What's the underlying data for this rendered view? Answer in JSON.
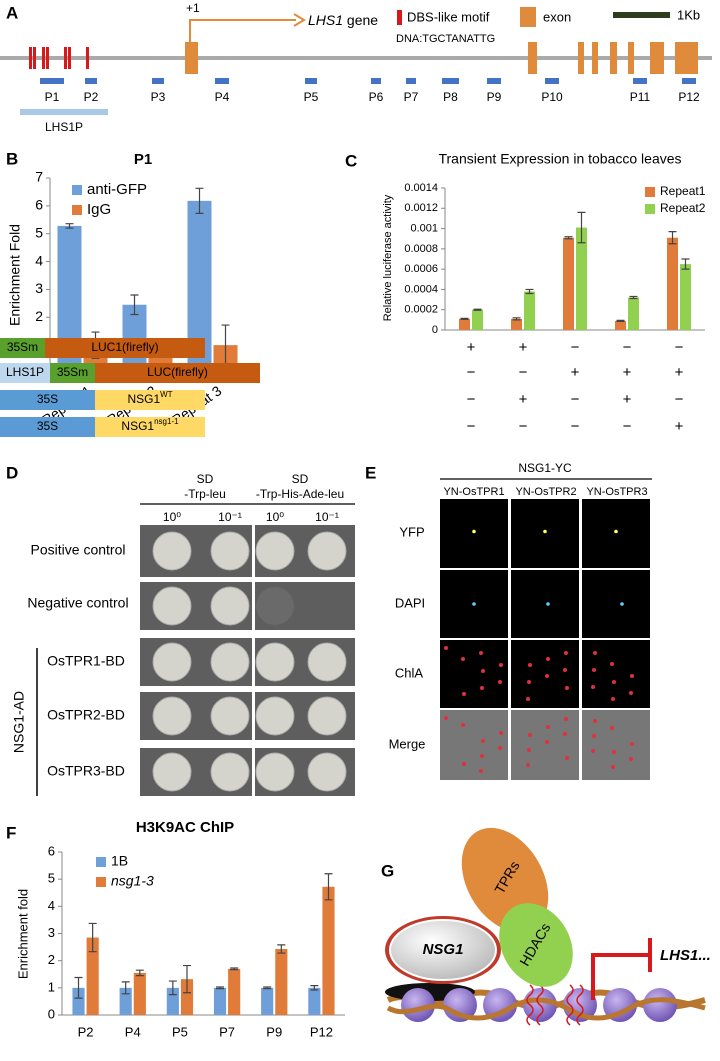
{
  "panel_labels": [
    "A",
    "B",
    "C",
    "D",
    "E",
    "F",
    "G"
  ],
  "gene_map": {
    "tss": "+1",
    "gene": "LHS1",
    "gene_suffix": "gene",
    "motif_legend": "DBS-like motif",
    "motif_sequence": "DNA:TGCTANATTG",
    "exon_legend": "exon",
    "scale": "1Kb",
    "probes": [
      "P1",
      "P2",
      "P3",
      "P4",
      "P5",
      "P6",
      "P7",
      "P8",
      "P9",
      "P10",
      "P11",
      "P12"
    ],
    "promoter": "LHS1P"
  },
  "chart_data": [
    {
      "type": "bar",
      "title": "P1",
      "y_label": "Enrichment  Fold",
      "categories": [
        "Repeat 1",
        "Repeat 2",
        "Repeat 3"
      ],
      "series": [
        {
          "name": "anti-GFP",
          "color": "#6f9fd8",
          "values": [
            5.28,
            2.45,
            6.18
          ],
          "errors": [
            0.08,
            0.35,
            0.45
          ]
        },
        {
          "name": "IgG",
          "color": "#e07b39",
          "values": [
            1,
            1,
            1
          ],
          "errors": [
            0.47,
            0.15,
            0.72
          ]
        }
      ],
      "ylim": [
        0,
        7
      ],
      "yticks": [
        0,
        1,
        2,
        3,
        4,
        5,
        6,
        7
      ],
      "legend": "upper left",
      "grid": false
    },
    {
      "type": "bar",
      "title": "Transient Expression in tobacco leaves",
      "y_label": "Relative luciferase activity",
      "categories": [
        null,
        null,
        null,
        null,
        null
      ],
      "series": [
        {
          "name": "Repeat1",
          "color": "#e07b39",
          "values": [
            0.00011,
            0.00011,
            0.00091,
            9e-05,
            0.00091
          ],
          "errors": [
            5e-06,
            1e-05,
            1e-05,
            5e-06,
            6e-05
          ]
        },
        {
          "name": "Repeat2",
          "color": "#92d050",
          "values": [
            0.0002,
            0.00038,
            0.00101,
            0.00032,
            0.00065
          ],
          "errors": [
            5e-06,
            2e-05,
            0.00015,
            1e-05,
            5e-05
          ]
        }
      ],
      "ylim": [
        0,
        0.0014
      ],
      "yticks": [
        0,
        0.0002,
        0.0004,
        0.0006,
        0.0008,
        0.001,
        0.0012,
        0.0014
      ],
      "legend": "upper right",
      "grid": false
    },
    {
      "type": "bar",
      "title": "H3K9AC ChIP",
      "y_label": "Enrichment fold",
      "categories": [
        "P2",
        "P4",
        "P5",
        "P7",
        "P9",
        "P12"
      ],
      "series": [
        {
          "name": "1B",
          "color": "#6f9fd8",
          "values": [
            1,
            1,
            1,
            1,
            1,
            1
          ],
          "errors": [
            0.38,
            0.22,
            0.25,
            0.03,
            0.03,
            0.08
          ]
        },
        {
          "name": "nsg1-3",
          "color": "#e07b39",
          "values": [
            2.85,
            1.55,
            1.32,
            1.7,
            2.43,
            4.72
          ],
          "errors": [
            0.52,
            0.1,
            0.5,
            0.03,
            0.15,
            0.48
          ]
        }
      ],
      "ylim": [
        0,
        6
      ],
      "yticks": [
        0,
        1,
        2,
        3,
        4,
        5,
        6
      ],
      "legend": "upper left",
      "grid": false
    }
  ],
  "constructs": [
    {
      "parts": [
        {
          "text": "35Sm"
        },
        {
          "text": "LUC1(firefly)"
        }
      ],
      "signs": [
        "+",
        "+",
        "−",
        "−",
        "−"
      ]
    },
    {
      "parts": [
        {
          "text": "LHS1P"
        },
        {
          "text": "35Sm"
        },
        {
          "text": "LUC(firefly)"
        }
      ],
      "signs": [
        "−",
        "−",
        "+",
        "+",
        "+"
      ]
    },
    {
      "parts": [
        {
          "text": "35S"
        },
        {
          "text": "NSG1",
          "sup": "WT"
        }
      ],
      "signs": [
        "−",
        "+",
        "−",
        "+",
        "−"
      ]
    },
    {
      "parts": [
        {
          "text": "35S"
        },
        {
          "text": "NSG1",
          "sup": "nsg1-1"
        }
      ],
      "signs": [
        "−",
        "−",
        "−",
        "−",
        "+"
      ]
    }
  ],
  "y2h": {
    "media": [
      [
        "SD",
        "-Trp-leu"
      ],
      [
        "SD",
        "-Trp-His-Ade-leu"
      ]
    ],
    "dilutions": [
      "10⁰",
      "10⁻¹",
      "10⁰",
      "10⁻¹"
    ],
    "rows": [
      "Positive control",
      "Negative control",
      "OsTPR1-BD",
      "OsTPR2-BD",
      "OsTPR3-BD"
    ],
    "group": "NSG1-AD"
  },
  "bifc": {
    "header": "NSG1-YC",
    "columns": [
      "YN-OsTPR1",
      "YN-OsTPR2",
      "YN-OsTPR3"
    ],
    "rows": [
      "YFP",
      "DAPI",
      "ChlA",
      "Merge"
    ]
  },
  "model": {
    "tprs": "TPRs",
    "nsg1": "NSG1",
    "hdacs": "HDACs",
    "target": "LHS1..."
  }
}
